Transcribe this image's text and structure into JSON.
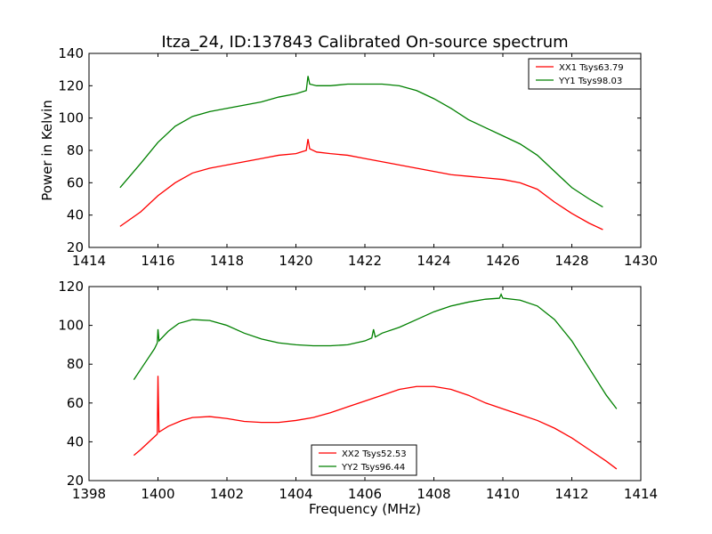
{
  "figure_title": "Itza_24, ID:137843 Calibrated On-source spectrum",
  "colors": {
    "xx": "#ff0000",
    "yy": "#008000",
    "axis": "#000000"
  },
  "chart_data": [
    {
      "type": "line",
      "title": "Itza_24, ID:137843 Calibrated On-source spectrum",
      "xlabel": "",
      "ylabel": "Power in Kelvin",
      "xlim": [
        1414,
        1430
      ],
      "ylim": [
        20,
        140
      ],
      "xticks": [
        "1414",
        "1416",
        "1418",
        "1420",
        "1422",
        "1424",
        "1426",
        "1428",
        "1430"
      ],
      "yticks": [
        "20",
        "40",
        "60",
        "80",
        "100",
        "120",
        "140"
      ],
      "legend_position": "top-right",
      "grid": false,
      "series": [
        {
          "name": "XX1 Tsys63.79",
          "color": "#ff0000",
          "x": [
            1414.9,
            1415.5,
            1416.0,
            1416.5,
            1417.0,
            1417.5,
            1418.0,
            1418.5,
            1419.0,
            1419.5,
            1420.0,
            1420.3,
            1420.35,
            1420.4,
            1420.6,
            1421.0,
            1421.5,
            1422.0,
            1422.5,
            1423.0,
            1423.5,
            1424.0,
            1424.5,
            1425.0,
            1425.5,
            1426.0,
            1426.5,
            1427.0,
            1427.5,
            1428.0,
            1428.5,
            1428.9
          ],
          "y": [
            33,
            42,
            52,
            60,
            66,
            69,
            71,
            73,
            75,
            77,
            78,
            80,
            87,
            81,
            79,
            78,
            77,
            75,
            73,
            71,
            69,
            67,
            65,
            64,
            63,
            62,
            60,
            56,
            48,
            41,
            35,
            31
          ]
        },
        {
          "name": "YY1 Tsys98.03",
          "color": "#008000",
          "x": [
            1414.9,
            1415.5,
            1416.0,
            1416.5,
            1417.0,
            1417.5,
            1418.0,
            1418.5,
            1419.0,
            1419.5,
            1420.0,
            1420.3,
            1420.35,
            1420.4,
            1420.6,
            1421.0,
            1421.5,
            1422.0,
            1422.5,
            1423.0,
            1423.5,
            1424.0,
            1424.5,
            1425.0,
            1425.5,
            1426.0,
            1426.5,
            1427.0,
            1427.5,
            1428.0,
            1428.5,
            1428.9
          ],
          "y": [
            57,
            72,
            85,
            95,
            101,
            104,
            106,
            108,
            110,
            113,
            115,
            117,
            126,
            121,
            120,
            120,
            121,
            121,
            121,
            120,
            117,
            112,
            106,
            99,
            94,
            89,
            84,
            77,
            67,
            57,
            50,
            45
          ]
        }
      ]
    },
    {
      "type": "line",
      "title": "",
      "xlabel": "Frequency (MHz)",
      "ylabel": "",
      "xlim": [
        1398,
        1414
      ],
      "ylim": [
        20,
        120
      ],
      "xticks": [
        "1398",
        "1400",
        "1402",
        "1404",
        "1406",
        "1408",
        "1410",
        "1412",
        "1414"
      ],
      "yticks": [
        "20",
        "40",
        "60",
        "80",
        "100",
        "120"
      ],
      "legend_position": "bottom-center",
      "grid": false,
      "series": [
        {
          "name": "XX2 Tsys52.53",
          "color": "#ff0000",
          "x": [
            1399.3,
            1399.5,
            1399.8,
            1399.98,
            1400.0,
            1400.03,
            1400.3,
            1400.7,
            1401.0,
            1401.5,
            1402.0,
            1402.5,
            1403.0,
            1403.5,
            1404.0,
            1404.5,
            1405.0,
            1405.5,
            1406.0,
            1406.5,
            1407.0,
            1407.5,
            1408.0,
            1408.5,
            1409.0,
            1409.5,
            1410.0,
            1410.5,
            1411.0,
            1411.5,
            1412.0,
            1412.5,
            1413.0,
            1413.3
          ],
          "y": [
            33,
            36,
            41,
            44,
            74,
            45,
            48,
            51,
            52.5,
            53,
            52,
            50.5,
            50,
            50,
            51,
            52.5,
            55,
            58,
            61,
            64,
            67,
            68.5,
            68.5,
            67,
            64,
            60,
            57,
            54,
            51,
            47,
            42,
            36,
            30,
            26
          ]
        },
        {
          "name": "YY2 Tsys96.44",
          "color": "#008000",
          "x": [
            1399.3,
            1399.6,
            1399.9,
            1399.98,
            1400.0,
            1400.03,
            1400.3,
            1400.6,
            1401.0,
            1401.5,
            1402.0,
            1402.5,
            1403.0,
            1403.5,
            1404.0,
            1404.5,
            1405.0,
            1405.5,
            1406.0,
            1406.2,
            1406.25,
            1406.3,
            1406.5,
            1407.0,
            1407.5,
            1408.0,
            1408.5,
            1409.0,
            1409.5,
            1409.9,
            1409.95,
            1410.0,
            1410.5,
            1411.0,
            1411.5,
            1412.0,
            1412.5,
            1413.0,
            1413.3
          ],
          "y": [
            72,
            80,
            88,
            91,
            98,
            92,
            97,
            101,
            103,
            102.5,
            100,
            96,
            93,
            91,
            90,
            89.5,
            89.5,
            90,
            92,
            93.5,
            98,
            94,
            96,
            99,
            103,
            107,
            110,
            112,
            113.5,
            114,
            116,
            114,
            113,
            110,
            103,
            92,
            78,
            64,
            57
          ]
        }
      ]
    }
  ]
}
